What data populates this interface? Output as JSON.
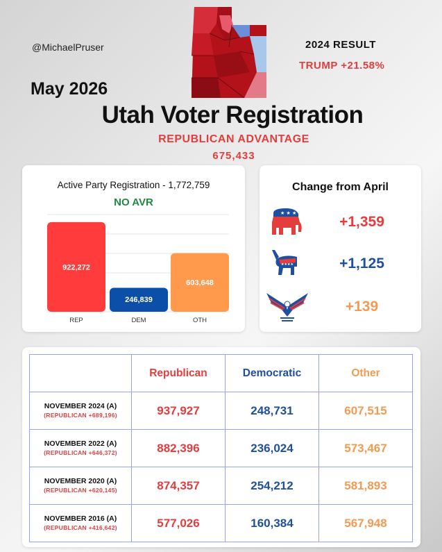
{
  "header": {
    "handle": "@MichaelPruser",
    "result_title": "2024 RESULT",
    "result_value": "TRUMP +21.58%",
    "date": "May 2026",
    "title": "Utah Voter Registration",
    "advantage_label": "REPUBLICAN ADVANTAGE",
    "advantage_value": "675,433"
  },
  "colors": {
    "rep": "#ff3b3b",
    "dem": "#0b4fa8",
    "oth": "#ff9a4d",
    "green": "#1f8a3f"
  },
  "chart_data": {
    "type": "bar",
    "title": "Active Party Registration - 1,772,759",
    "subtitle": "NO AVR",
    "categories": [
      "REP",
      "DEM",
      "OTH"
    ],
    "values": [
      922272,
      246839,
      603648
    ],
    "value_labels": [
      "922,272",
      "246,839",
      "603,648"
    ],
    "ylim": [
      0,
      1000000
    ],
    "grid": true
  },
  "change": {
    "title": "Change from April",
    "items": [
      {
        "icon": "republican-elephant-icon",
        "value": "+1,359"
      },
      {
        "icon": "democratic-donkey-icon",
        "value": "+1,125"
      },
      {
        "icon": "eagle-icon",
        "value": "+139"
      }
    ]
  },
  "table": {
    "headers": [
      "Republican",
      "Democratic",
      "Other"
    ],
    "rows": [
      {
        "label": "NOVEMBER 2024 (A)",
        "sub": "(REPUBLICAN +689,196)",
        "rep": "937,927",
        "dem": "248,731",
        "oth": "607,515"
      },
      {
        "label": "NOVEMBER 2022 (A)",
        "sub": "(REPUBLICAN +646,372)",
        "rep": "882,396",
        "dem": "236,024",
        "oth": "573,467"
      },
      {
        "label": "NOVEMBER 2020 (A)",
        "sub": "(REPUBLICAN +620,145)",
        "rep": "874,357",
        "dem": "254,212",
        "oth": "581,893"
      },
      {
        "label": "NOVEMBER 2016 (A)",
        "sub": "(REPUBLICAN +416,642)",
        "rep": "577,026",
        "dem": "160,384",
        "oth": "567,948"
      }
    ]
  }
}
